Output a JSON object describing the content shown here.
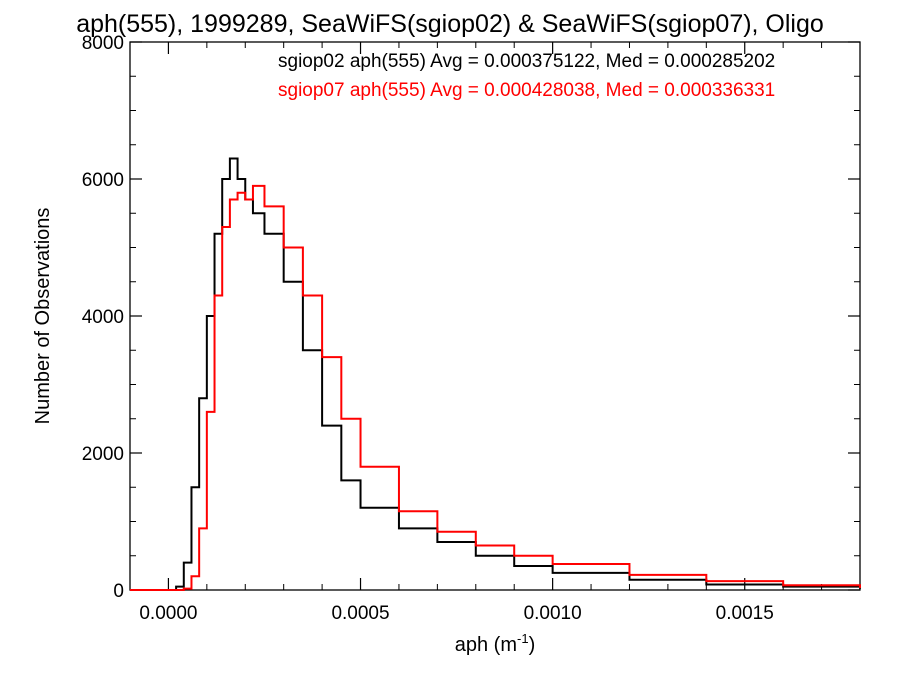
{
  "chart_data": {
    "type": "line",
    "title": "aph(555), 1999289, SeaWiFS(sgiop02) & SeaWiFS(sgiop07), Oligo",
    "xlabel": "aph (m",
    "xlabel_sup": "-1",
    "xlabel_close": ")",
    "ylabel": "Number of Observations",
    "xlim": [
      -0.0001,
      0.0018
    ],
    "ylim": [
      0,
      8000
    ],
    "x_ticks": [
      0.0,
      0.0005,
      0.001,
      0.0015
    ],
    "x_tick_labels": [
      "0.0000",
      "0.0005",
      "0.0010",
      "0.0015"
    ],
    "y_ticks": [
      0,
      2000,
      4000,
      6000,
      8000
    ],
    "y_tick_labels": [
      "0",
      "2000",
      "4000",
      "6000",
      "8000"
    ],
    "grid": false,
    "legend_position": "top-right",
    "series": [
      {
        "name": "sgiop02 aph(555) Avg = 0.000375122, Med = 0.000285202",
        "color": "#000000",
        "x": [
          -0.0001,
          0.0,
          2e-05,
          4e-05,
          6e-05,
          8e-05,
          0.0001,
          0.00012,
          0.00014,
          0.00016,
          0.00018,
          0.0002,
          0.00022,
          0.00025,
          0.0003,
          0.00035,
          0.0004,
          0.00045,
          0.0005,
          0.0006,
          0.0007,
          0.0008,
          0.0009,
          0.001,
          0.0012,
          0.0014,
          0.0016,
          0.0018
        ],
        "y": [
          0,
          0,
          50,
          400,
          1500,
          2800,
          4000,
          5200,
          6000,
          6300,
          6000,
          5700,
          5500,
          5200,
          4500,
          3500,
          2400,
          1600,
          1200,
          900,
          700,
          500,
          350,
          250,
          150,
          80,
          50,
          20
        ]
      },
      {
        "name": "sgiop07 aph(555) Avg = 0.000428038, Med = 0.000336331",
        "color": "#ff0000",
        "x": [
          -0.0001,
          0.0,
          2e-05,
          4e-05,
          6e-05,
          8e-05,
          0.0001,
          0.00012,
          0.00014,
          0.00016,
          0.00018,
          0.0002,
          0.00022,
          0.00025,
          0.0003,
          0.00035,
          0.0004,
          0.00045,
          0.0005,
          0.0006,
          0.0007,
          0.0008,
          0.0009,
          0.001,
          0.0012,
          0.0014,
          0.0016,
          0.0018
        ],
        "y": [
          0,
          0,
          0,
          20,
          200,
          900,
          2600,
          4300,
          5300,
          5700,
          5800,
          5700,
          5900,
          5600,
          5000,
          4300,
          3400,
          2500,
          1800,
          1150,
          850,
          650,
          500,
          380,
          220,
          130,
          70,
          30
        ]
      }
    ]
  }
}
